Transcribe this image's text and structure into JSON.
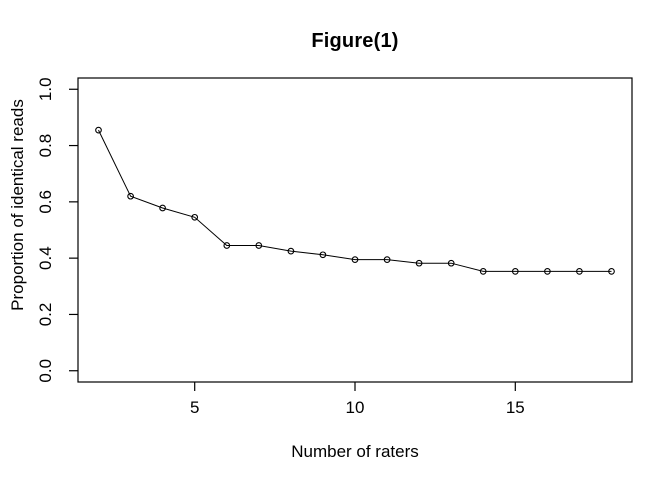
{
  "figure": {
    "background_color": "#ffffff",
    "foreground_color": "#000000"
  },
  "chart_data": {
    "type": "line",
    "title": "Figure(1)",
    "xlabel": "Number of raters",
    "ylabel": "Proportion of identical reads",
    "x": [
      2,
      3,
      4,
      5,
      6,
      7,
      8,
      9,
      10,
      11,
      12,
      13,
      14,
      15,
      16,
      17,
      18
    ],
    "y": [
      0.855,
      0.62,
      0.578,
      0.545,
      0.445,
      0.445,
      0.425,
      0.412,
      0.395,
      0.395,
      0.382,
      0.382,
      0.353,
      0.353,
      0.353,
      0.353,
      0.353
    ],
    "marker": "open-circle",
    "line_color": "#000000",
    "marker_color": "#000000",
    "xlim": [
      1.36,
      18.64
    ],
    "ylim": [
      -0.04,
      1.04
    ],
    "xticks": [
      5,
      10,
      15
    ],
    "xtick_labels": [
      "5",
      "10",
      "15"
    ],
    "yticks": [
      0.0,
      0.2,
      0.4,
      0.6,
      0.8,
      1.0
    ],
    "ytick_labels": [
      "0.0",
      "0.2",
      "0.4",
      "0.6",
      "0.8",
      "1.0"
    ],
    "grid": false,
    "legend": null
  }
}
